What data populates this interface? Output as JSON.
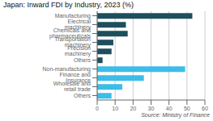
{
  "chart_data": {
    "type": "bar",
    "orientation": "horizontal",
    "title": "Japan: Inward FDI by Industry, 2023 (%)",
    "annotations": [
      "Source: Ministry of Finance"
    ],
    "categories": [
      "Manufacturing",
      "Electrical machinery",
      "Chemicals and pharmaceuticals",
      "Transportation machinery",
      "Precision machinery",
      "Others",
      "Non-manufacturing",
      "Finance and Insurance",
      "Wholesale and retail trade",
      "Others"
    ],
    "values": [
      53,
      16,
      17,
      9,
      8,
      3,
      49,
      26,
      14,
      8
    ],
    "colors": [
      "#1d4f5e",
      "#1d4f5e",
      "#1d4f5e",
      "#1d4f5e",
      "#1d4f5e",
      "#1d4f5e",
      "#3bbde8",
      "#3bbde8",
      "#3bbde8",
      "#3bbde8"
    ],
    "xlim": [
      0,
      60
    ],
    "xticks": [
      0,
      10,
      20,
      30,
      40,
      50,
      60
    ],
    "grid": true
  }
}
